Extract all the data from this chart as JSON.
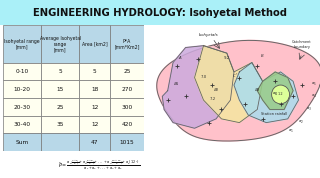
{
  "title": "ENGINEERING HYDROLOGY: Isohyetal Method",
  "title_bg": "#aaf0f8",
  "title_color": "#111111",
  "table_header_bg": "#b8d8e8",
  "table_row_bg": "#fffff0",
  "table_sum_bg": "#b8d8e8",
  "headers": [
    "Isohyetal range\n[mm]",
    "Average Isohyetal\nrange\n[mm]",
    "Area [km2]",
    "P*A\n[mm*Km2]"
  ],
  "rows": [
    [
      "0-10",
      "5",
      "5",
      "25"
    ],
    [
      "10-20",
      "15",
      "18",
      "270"
    ],
    [
      "20-30",
      "25",
      "12",
      "300"
    ],
    [
      "30-40",
      "35",
      "12",
      "420"
    ],
    [
      "Sum",
      "",
      "47",
      "1015"
    ]
  ],
  "bg_color": "#ffffff",
  "diagram": {
    "catchment_color": "#ffb6c1",
    "zone_blue_color": "#aaddee",
    "zone_yellow_color": "#f5e6a0",
    "zone_purple_color": "#ccaadd",
    "zone_green_color": "#99cc88",
    "zone_green2_color": "#aad888",
    "zone_inner_color": "#ddff99"
  }
}
